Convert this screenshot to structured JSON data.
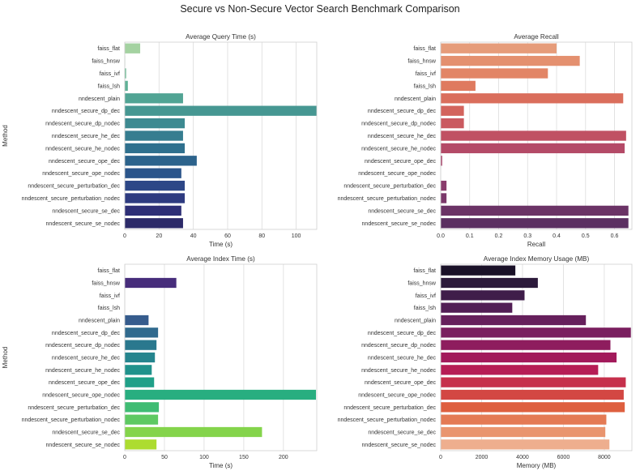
{
  "figure": {
    "title": "Secure vs Non-Secure Vector Search Benchmark Comparison"
  },
  "categories": [
    "faiss_flat",
    "faiss_hnsw",
    "faiss_ivf",
    "faiss_lsh",
    "nndescent_plain",
    "nndescent_secure_dp_dec",
    "nndescent_secure_dp_nodec",
    "nndescent_secure_he_dec",
    "nndescent_secure_he_nodec",
    "nndescent_secure_ope_dec",
    "nndescent_secure_ope_nodec",
    "nndescent_secure_perturbation_dec",
    "nndescent_secure_perturbation_nodec",
    "nndescent_secure_se_dec",
    "nndescent_secure_se_nodec"
  ],
  "chart_data": [
    {
      "type": "bar",
      "orientation": "horizontal",
      "title": "Average Query Time (s)",
      "xlabel": "Time (s)",
      "ylabel": "Method",
      "xlim": [
        0,
        112
      ],
      "xticks": [
        0,
        20,
        40,
        60,
        80,
        100
      ],
      "values": [
        9,
        0.2,
        0.8,
        1.8,
        34,
        112,
        35,
        34,
        35,
        42,
        33,
        35,
        35,
        33,
        34
      ],
      "palette": "crest"
    },
    {
      "type": "bar",
      "orientation": "horizontal",
      "title": "Average Recall",
      "xlabel": "Recall",
      "ylabel": "",
      "xlim": [
        0,
        0.66
      ],
      "xticks": [
        0.0,
        0.1,
        0.2,
        0.3,
        0.4,
        0.5,
        0.6
      ],
      "values": [
        0.4,
        0.48,
        0.37,
        0.12,
        0.63,
        0.08,
        0.08,
        0.64,
        0.635,
        0.005,
        0,
        0.02,
        0.02,
        0.648,
        0.648
      ],
      "palette": "flare"
    },
    {
      "type": "bar",
      "orientation": "horizontal",
      "title": "Average Index Time (s)",
      "xlabel": "Time (s)",
      "ylabel": "Method",
      "xlim": [
        0,
        242
      ],
      "xticks": [
        0,
        50,
        100,
        150,
        200,
        250
      ],
      "values": [
        0,
        65,
        0,
        0,
        30,
        42,
        40,
        38,
        34,
        37,
        241,
        43,
        42,
        173,
        40
      ],
      "palette": "viridis"
    },
    {
      "type": "bar",
      "orientation": "horizontal",
      "title": "Average Index Memory Usage (MB)",
      "xlabel": "Memory (MB)",
      "ylabel": "",
      "xlim": [
        0,
        9350
      ],
      "xticks": [
        0,
        2000,
        4000,
        6000,
        8000
      ],
      "values": [
        3650,
        4750,
        4100,
        3500,
        7100,
        9300,
        8300,
        8600,
        7700,
        9050,
        8950,
        9000,
        8100,
        8050,
        8250
      ],
      "palette": "rocket"
    }
  ]
}
